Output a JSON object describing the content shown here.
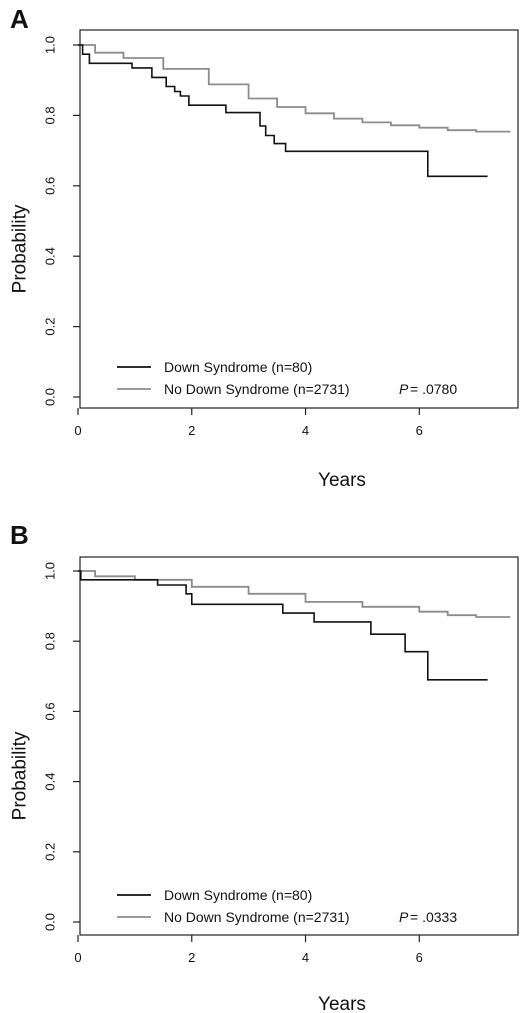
{
  "colors": {
    "ds": "#111111",
    "nds": "#8c8c8c",
    "axis": "#222222"
  },
  "chart_data": [
    {
      "type": "line",
      "panel_label": "A",
      "xlabel": "Years",
      "ylabel": "Probability",
      "xlim": [
        0,
        7.7
      ],
      "ylim": [
        0,
        1.0
      ],
      "xticks": [
        0,
        2,
        4,
        6
      ],
      "yticks": [
        0.0,
        0.2,
        0.4,
        0.6,
        0.8,
        1.0
      ],
      "ytick_labels": [
        "0.0",
        "0.2",
        "0.4",
        "0.6",
        "0.8",
        "1.0"
      ],
      "step": true,
      "series": [
        {
          "name": "Down Syndrome (n=80)",
          "color": "#111111",
          "x": [
            0,
            0.08,
            0.2,
            0.95,
            1.3,
            1.55,
            1.7,
            1.8,
            1.95,
            2.6,
            3.2,
            3.3,
            3.45,
            3.65,
            3.95,
            6.15,
            7.2
          ],
          "y": [
            1.0,
            0.974,
            0.948,
            0.935,
            0.908,
            0.882,
            0.868,
            0.855,
            0.829,
            0.808,
            0.77,
            0.743,
            0.72,
            0.698,
            0.698,
            0.627,
            0.627
          ]
        },
        {
          "name": "No Down Syndrome (n=2731)",
          "color": "#8c8c8c",
          "x": [
            0,
            0.3,
            0.8,
            1.5,
            2.3,
            3.0,
            3.5,
            4.0,
            4.5,
            5.0,
            5.5,
            6.0,
            6.5,
            7.0,
            7.6
          ],
          "y": [
            1.0,
            0.978,
            0.963,
            0.932,
            0.888,
            0.848,
            0.824,
            0.806,
            0.791,
            0.78,
            0.772,
            0.765,
            0.758,
            0.754,
            0.754
          ]
        }
      ],
      "annotation": {
        "p_label": "P",
        "p_value": " = .0780"
      }
    },
    {
      "type": "line",
      "panel_label": "B",
      "xlabel": "Years",
      "ylabel": "Probability",
      "xlim": [
        0,
        7.7
      ],
      "ylim": [
        0,
        1.0
      ],
      "xticks": [
        0,
        2,
        4,
        6
      ],
      "yticks": [
        0.0,
        0.2,
        0.4,
        0.6,
        0.8,
        1.0
      ],
      "ytick_labels": [
        "0.0",
        "0.2",
        "0.4",
        "0.6",
        "0.8",
        "1.0"
      ],
      "step": true,
      "series": [
        {
          "name": "Down Syndrome (n=80)",
          "color": "#111111",
          "x": [
            0,
            0.05,
            1.4,
            1.9,
            2.0,
            3.6,
            4.15,
            5.15,
            5.75,
            6.15,
            7.2
          ],
          "y": [
            1.0,
            0.975,
            0.96,
            0.935,
            0.905,
            0.88,
            0.855,
            0.82,
            0.77,
            0.69,
            0.69
          ]
        },
        {
          "name": "No Down Syndrome (n=2731)",
          "color": "#8c8c8c",
          "x": [
            0,
            0.3,
            1.0,
            2.0,
            3.0,
            4.0,
            5.0,
            6.0,
            6.5,
            7.0,
            7.6
          ],
          "y": [
            1.0,
            0.985,
            0.975,
            0.955,
            0.935,
            0.912,
            0.898,
            0.884,
            0.874,
            0.869,
            0.869
          ]
        }
      ],
      "annotation": {
        "p_label": "P",
        "p_value": " = .0333"
      }
    }
  ]
}
